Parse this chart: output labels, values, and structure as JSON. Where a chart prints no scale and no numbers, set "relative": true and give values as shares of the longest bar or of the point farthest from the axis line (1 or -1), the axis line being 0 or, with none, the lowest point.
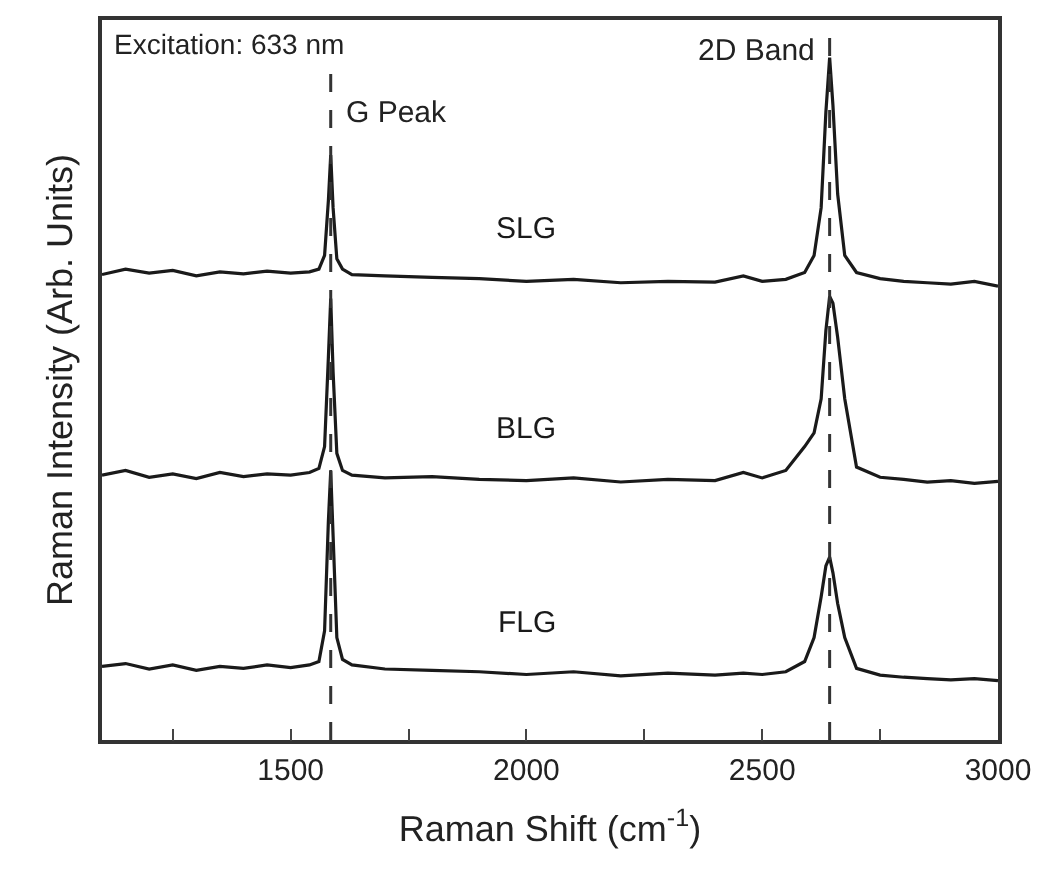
{
  "chart_data": {
    "type": "line",
    "relative": true,
    "xlabel": "Raman Shift (cm$^{-1}$)",
    "ylabel": "Raman Intensity (Arb. Units)",
    "annotations": [
      "Excitation: 633 nm"
    ],
    "x": [
      1100,
      1150,
      1200,
      1250,
      1300,
      1350,
      1400,
      1450,
      1500,
      1540,
      1560,
      1572,
      1580,
      1585,
      1590,
      1598,
      1610,
      1630,
      1700,
      1800,
      1900,
      2000,
      2100,
      2200,
      2300,
      2400,
      2460,
      2500,
      2550,
      2590,
      2610,
      2625,
      2635,
      2643,
      2650,
      2660,
      2675,
      2700,
      2750,
      2800,
      2850,
      2900,
      2950,
      3000
    ],
    "series": [
      {
        "name": "SLG",
        "color": "#1a1a1a",
        "values": [
          0.682,
          0.69,
          0.684,
          0.688,
          0.68,
          0.686,
          0.683,
          0.687,
          0.684,
          0.686,
          0.69,
          0.71,
          0.79,
          0.857,
          0.78,
          0.705,
          0.69,
          0.682,
          0.68,
          0.678,
          0.676,
          0.672,
          0.675,
          0.67,
          0.672,
          0.671,
          0.68,
          0.672,
          0.675,
          0.685,
          0.71,
          0.78,
          0.92,
          1.0,
          0.93,
          0.8,
          0.71,
          0.685,
          0.676,
          0.672,
          0.67,
          0.668,
          0.672,
          0.665
        ]
      },
      {
        "name": "BLG",
        "color": "#1a1a1a",
        "values": [
          0.388,
          0.395,
          0.385,
          0.39,
          0.383,
          0.392,
          0.386,
          0.39,
          0.388,
          0.392,
          0.398,
          0.43,
          0.56,
          0.647,
          0.54,
          0.42,
          0.395,
          0.388,
          0.384,
          0.386,
          0.382,
          0.38,
          0.384,
          0.378,
          0.382,
          0.38,
          0.392,
          0.384,
          0.395,
          0.43,
          0.45,
          0.5,
          0.6,
          0.65,
          0.64,
          0.59,
          0.5,
          0.4,
          0.385,
          0.382,
          0.378,
          0.38,
          0.376,
          0.379
        ]
      },
      {
        "name": "FLG",
        "color": "#1a1a1a",
        "values": [
          0.108,
          0.112,
          0.104,
          0.11,
          0.102,
          0.108,
          0.105,
          0.11,
          0.106,
          0.11,
          0.115,
          0.16,
          0.32,
          0.394,
          0.3,
          0.15,
          0.118,
          0.11,
          0.104,
          0.102,
          0.1,
          0.096,
          0.1,
          0.094,
          0.098,
          0.095,
          0.098,
          0.096,
          0.1,
          0.115,
          0.15,
          0.21,
          0.255,
          0.268,
          0.245,
          0.2,
          0.15,
          0.105,
          0.095,
          0.092,
          0.09,
          0.088,
          0.09,
          0.087
        ]
      }
    ],
    "xlim": [
      1100,
      3000
    ],
    "xticks": [
      {
        "value": 1250,
        "label": null
      },
      1500,
      {
        "value": 1750,
        "label": null
      },
      2000,
      {
        "value": 2250,
        "label": null
      },
      2500,
      {
        "value": 2750,
        "label": null
      },
      3000
    ],
    "ref_lines": [
      {
        "axis": "x",
        "value": 1585,
        "label": "G Peak",
        "color": "#333333",
        "line_style": "dashed"
      },
      {
        "axis": "x",
        "value": 2643,
        "label": "2D Band",
        "color": "#333333",
        "line_style": "dashed"
      }
    ],
    "legend": false,
    "marker": "none",
    "line_style": "solid"
  }
}
